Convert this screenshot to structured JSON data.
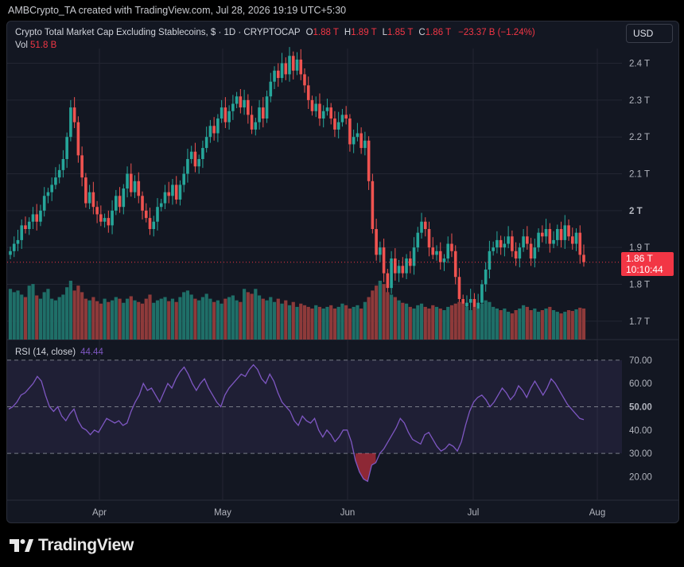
{
  "caption": "AMBCrypto_TA created with TradingView.com, Jul 28, 2026 19:19 UTC+5:30",
  "legend": {
    "title": "Crypto Total Market Cap Excluding Stablecoins, $ · 1D · CRYPTOCAP",
    "o_label": "O",
    "o_value": "1.88 T",
    "h_label": "H",
    "h_value": "1.89 T",
    "l_label": "L",
    "l_value": "1.85 T",
    "c_label": "C",
    "c_value": "1.86 T",
    "change": "−23.37 B (−1.24%)",
    "vol_label": "Vol",
    "vol_value": "51.8 B"
  },
  "currency_button": "USD",
  "last_price": {
    "value": "1.86 T",
    "countdown": "10:10:44"
  },
  "rsi_legend": {
    "label": "RSI (14, close)",
    "value": "44.44"
  },
  "brand": {
    "name": "TradingView",
    "logo_icon": "tradingview-logo-icon"
  },
  "colors": {
    "up": "#26a69a",
    "down": "#ef5350",
    "rsi_line": "#7e57c2",
    "background": "#131722"
  },
  "chart_data": [
    {
      "type": "candlestick",
      "title": "Crypto Total Market Cap Excluding Stablecoins, $",
      "price_unit": "T (trillion USD)",
      "y_ticks": [
        "1.7 T",
        "1.8 T",
        "1.9 T",
        "2 T",
        "2.1 T",
        "2.2 T",
        "2.3 T",
        "2.4 T"
      ],
      "y_range": [
        1.65,
        2.44
      ],
      "x_ticks": [
        "Apr",
        "May",
        "Jun",
        "Jul",
        "Aug"
      ],
      "closes": [
        1.89,
        1.91,
        1.92,
        1.96,
        1.95,
        1.97,
        1.99,
        1.97,
        2.0,
        2.04,
        2.05,
        2.07,
        2.09,
        2.11,
        2.14,
        2.2,
        2.28,
        2.24,
        2.15,
        2.09,
        2.02,
        2.05,
        2.01,
        1.99,
        1.97,
        1.98,
        1.96,
        2.0,
        2.04,
        2.01,
        2.06,
        2.1,
        2.05,
        2.08,
        2.04,
        2.0,
        1.98,
        1.95,
        1.97,
        2.01,
        2.02,
        2.05,
        2.04,
        2.07,
        2.03,
        2.07,
        2.1,
        2.14,
        2.16,
        2.12,
        2.14,
        2.17,
        2.2,
        2.23,
        2.21,
        2.25,
        2.28,
        2.24,
        2.27,
        2.29,
        2.31,
        2.28,
        2.3,
        2.26,
        2.22,
        2.24,
        2.28,
        2.25,
        2.31,
        2.35,
        2.38,
        2.36,
        2.4,
        2.37,
        2.42,
        2.38,
        2.41,
        2.37,
        2.34,
        2.3,
        2.27,
        2.29,
        2.25,
        2.27,
        2.28,
        2.25,
        2.22,
        2.24,
        2.26,
        2.25,
        2.18,
        2.2,
        2.21,
        2.17,
        2.19,
        2.08,
        1.95,
        1.88,
        1.9,
        1.83,
        1.79,
        1.87,
        1.83,
        1.85,
        1.83,
        1.87,
        1.85,
        1.9,
        1.94,
        1.97,
        1.95,
        1.9,
        1.88,
        1.89,
        1.86,
        1.87,
        1.91,
        1.89,
        1.82,
        1.76,
        1.74,
        1.75,
        1.76,
        1.73,
        1.75,
        1.8,
        1.84,
        1.89,
        1.9,
        1.92,
        1.9,
        1.91,
        1.93,
        1.89,
        1.87,
        1.9,
        1.93,
        1.91,
        1.87,
        1.9,
        1.94,
        1.93,
        1.95,
        1.91,
        1.92,
        1.95,
        1.92,
        1.96,
        1.93,
        1.91,
        1.94,
        1.88,
        1.86
      ]
    },
    {
      "type": "bar",
      "series_name": "Vol",
      "last_value": "51.8 B",
      "volumes": [
        62,
        58,
        60,
        55,
        52,
        66,
        68,
        54,
        50,
        58,
        62,
        50,
        48,
        52,
        55,
        64,
        72,
        60,
        66,
        58,
        50,
        48,
        52,
        47,
        44,
        50,
        46,
        48,
        52,
        50,
        45,
        50,
        53,
        48,
        46,
        44,
        50,
        55,
        45,
        48,
        50,
        52,
        47,
        50,
        46,
        52,
        58,
        60,
        55,
        50,
        48,
        52,
        56,
        50,
        46,
        48,
        44,
        50,
        52,
        54,
        48,
        46,
        62,
        58,
        56,
        62,
        54,
        50,
        48,
        52,
        46,
        50,
        44,
        48,
        42,
        46,
        40,
        44,
        42,
        40,
        38,
        42,
        40,
        38,
        40,
        42,
        38,
        40,
        44,
        42,
        38,
        40,
        42,
        38,
        46,
        52,
        60,
        66,
        72,
        68,
        58,
        55,
        52,
        48,
        45,
        44,
        40,
        38,
        42,
        44,
        40,
        38,
        42,
        40,
        38,
        36,
        40,
        42,
        44,
        46,
        44,
        40,
        36,
        40,
        38,
        44,
        48,
        46,
        40,
        38,
        36,
        38,
        34,
        32,
        36,
        38,
        42,
        40,
        36,
        38,
        34,
        36,
        38,
        40,
        36,
        34,
        32,
        34,
        36,
        35,
        37,
        39,
        38
      ]
    },
    {
      "type": "line",
      "series_name": "RSI (14, close)",
      "y_ticks": [
        "20.00",
        "30.00",
        "40.00",
        "50.00",
        "60.00",
        "70.00"
      ],
      "y_range": [
        14,
        72
      ],
      "band": [
        30,
        70
      ],
      "midline": 50,
      "oversold_fill_color": "#f23645",
      "values": [
        49,
        50,
        52,
        55,
        56,
        58,
        60,
        63,
        61,
        55,
        50,
        48,
        50,
        46,
        44,
        47,
        49,
        44,
        41,
        40,
        38,
        40,
        39,
        42,
        45,
        44,
        43,
        44,
        42,
        43,
        48,
        52,
        55,
        60,
        57,
        58,
        55,
        52,
        56,
        60,
        58,
        62,
        65,
        67,
        64,
        60,
        57,
        60,
        62,
        58,
        55,
        52,
        50,
        55,
        58,
        60,
        62,
        64,
        63,
        66,
        68,
        66,
        62,
        60,
        64,
        61,
        56,
        52,
        50,
        48,
        44,
        42,
        46,
        44,
        43,
        45,
        40,
        37,
        40,
        38,
        35,
        37,
        40,
        40,
        35,
        27,
        22,
        19,
        18,
        25,
        26,
        30,
        32,
        35,
        38,
        41,
        45,
        43,
        39,
        36,
        35,
        34,
        38,
        39,
        36,
        33,
        31,
        32,
        34,
        33,
        31,
        35,
        42,
        48,
        52,
        54,
        55,
        53,
        50,
        52,
        55,
        58,
        56,
        53,
        55,
        59,
        57,
        54,
        58,
        61,
        58,
        55,
        58,
        62,
        60,
        57,
        54,
        51,
        49,
        47,
        45,
        44.44
      ]
    }
  ]
}
